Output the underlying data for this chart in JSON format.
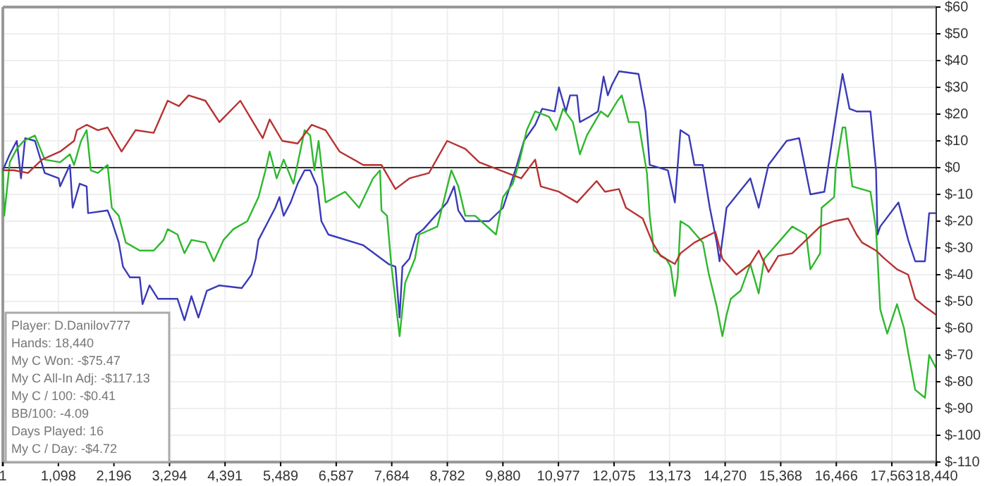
{
  "chart_data": {
    "type": "line",
    "grid": true,
    "marker": "none",
    "line_style": "solid",
    "xlim": [
      1,
      18440
    ],
    "ylim": [
      -110,
      60
    ],
    "xticks": [
      1,
      {
        "value": 1098,
        "label": "1,098"
      },
      {
        "value": 2196,
        "label": "2,196"
      },
      {
        "value": 3294,
        "label": "3,294"
      },
      {
        "value": 4391,
        "label": "4,391"
      },
      {
        "value": 5489,
        "label": "5,489"
      },
      {
        "value": 6587,
        "label": "6,587"
      },
      {
        "value": 7684,
        "label": "7,684"
      },
      {
        "value": 8782,
        "label": "8,782"
      },
      {
        "value": 9880,
        "label": "9,880"
      },
      {
        "value": 10977,
        "label": "10,977"
      },
      {
        "value": 12075,
        "label": "12,075"
      },
      {
        "value": 13173,
        "label": "13,173"
      },
      {
        "value": 14270,
        "label": "14,270"
      },
      {
        "value": 15368,
        "label": "15,368"
      },
      {
        "value": 16466,
        "label": "16,466"
      },
      {
        "value": 17563,
        "label": "17,563"
      },
      {
        "value": 18440,
        "label": "18,440"
      }
    ],
    "yticks": [
      {
        "value": 60,
        "label": "$60"
      },
      {
        "value": 50,
        "label": "$50"
      },
      {
        "value": 40,
        "label": "$40"
      },
      {
        "value": 30,
        "label": "$30"
      },
      {
        "value": 20,
        "label": "$20"
      },
      {
        "value": 10,
        "label": "$10"
      },
      {
        "value": 0,
        "label": "$0"
      },
      {
        "value": -10,
        "label": "$-10"
      },
      {
        "value": -20,
        "label": "$-20"
      },
      {
        "value": -30,
        "label": "$-30"
      },
      {
        "value": -40,
        "label": "$-40"
      },
      {
        "value": -50,
        "label": "$-50"
      },
      {
        "value": -60,
        "label": "$-60"
      },
      {
        "value": -70,
        "label": "$-70"
      },
      {
        "value": -80,
        "label": "$-80"
      },
      {
        "value": -90,
        "label": "$-90"
      },
      {
        "value": -100,
        "label": "$-100"
      },
      {
        "value": -110,
        "label": "$-110"
      }
    ],
    "ref_lines": [
      {
        "axis": "y",
        "value": 0,
        "color": "#333333"
      }
    ],
    "annotations": [
      "Player: D.Danilov777",
      "Hands: 18,440",
      "My C Won: -$75.47",
      "My C All-In Adj: -$117.13",
      "My C / 100: -$0.41",
      "BB/100: -4.09",
      "Days Played: 16",
      "My C / Day: -$4.72"
    ],
    "series": [
      {
        "color": "#3a3ab8",
        "x": [
          1,
          139,
          277,
          360,
          443,
          636,
          829,
          1105,
          1133,
          1326,
          1381,
          1519,
          1657,
          1685,
          2071,
          2154,
          2292,
          2375,
          2513,
          2706,
          2761,
          2899,
          3065,
          3451,
          3589,
          3727,
          3865,
          4031,
          4279,
          4721,
          4914,
          4997,
          5052,
          5383,
          5466,
          5549,
          5687,
          5825,
          5963,
          6073,
          6211,
          6294,
          6432,
          7122,
          7619,
          7757,
          7839,
          7895,
          8033,
          8171,
          8309,
          8778,
          8916,
          8999,
          9137,
          9606,
          9882,
          10158,
          10296,
          10517,
          10655,
          10903,
          10986,
          11124,
          11207,
          11345,
          11400,
          11593,
          11759,
          11869,
          11952,
          12035,
          12173,
          12559,
          12697,
          12780,
          13139,
          13277,
          13387,
          13553,
          13663,
          13829,
          13967,
          14105,
          14160,
          14298,
          14767,
          14933,
          15126,
          15485,
          15733,
          15954,
          16230,
          16423,
          16589,
          16727,
          16865,
          17141,
          17251,
          17279,
          17334,
          17693,
          17886,
          18024,
          18217,
          18300,
          18440
        ],
        "values": [
          -1,
          5,
          10,
          -4,
          11,
          10,
          -2,
          -4,
          -7,
          1,
          -15,
          -6,
          -7,
          -17,
          -16,
          -20,
          -28,
          -37,
          -41,
          -41,
          -51,
          -44,
          -49,
          -49,
          -57,
          -48,
          -56,
          -46,
          -44,
          -45,
          -40,
          -34,
          -27,
          -15,
          -11,
          -18,
          -13,
          -6,
          -1,
          -1,
          -7,
          -20,
          -25,
          -29,
          -36,
          -37,
          -56,
          -37,
          -34,
          -25,
          -23,
          -13,
          -7,
          -16,
          -20,
          -20,
          -15,
          1,
          10,
          16,
          22,
          21,
          30,
          21,
          27,
          27,
          17,
          19,
          21,
          34,
          27,
          31,
          36,
          35,
          21,
          1,
          -1,
          -13,
          14,
          12,
          1,
          1,
          -15,
          -28,
          -35,
          -15,
          -4,
          -15,
          1,
          10,
          11,
          -10,
          -9,
          15,
          35,
          22,
          21,
          21,
          -1,
          -25,
          -22,
          -13,
          -27,
          -35,
          -35,
          -17,
          -17
        ]
      },
      {
        "color": "#2eb82e",
        "x": [
          1,
          29,
          139,
          277,
          415,
          636,
          829,
          1133,
          1326,
          1409,
          1547,
          1657,
          1740,
          1878,
          2071,
          2154,
          2292,
          2430,
          2706,
          2982,
          3175,
          3258,
          3451,
          3589,
          3727,
          4003,
          4169,
          4362,
          4555,
          4831,
          5052,
          5190,
          5273,
          5411,
          5549,
          5742,
          5963,
          6073,
          6156,
          6239,
          6377,
          6763,
          7039,
          7315,
          7453,
          7481,
          7591,
          7674,
          7839,
          7950,
          8143,
          8226,
          8585,
          8861,
          8999,
          9137,
          9330,
          9744,
          9882,
          10075,
          10213,
          10351,
          10517,
          10793,
          10931,
          11069,
          11262,
          11400,
          11538,
          11814,
          11952,
          12145,
          12228,
          12366,
          12559,
          12725,
          12780,
          12863,
          13101,
          13194,
          13277,
          13332,
          13387,
          13553,
          13691,
          13829,
          13939,
          14105,
          14215,
          14298,
          14381,
          14574,
          14767,
          14933,
          15043,
          15319,
          15595,
          15871,
          15954,
          16147,
          16175,
          16423,
          16451,
          16589,
          16644,
          16782,
          17141,
          17251,
          17334,
          17472,
          17665,
          17803,
          17886,
          18024,
          18217,
          18300,
          18440
        ],
        "values": [
          -1,
          -18,
          2,
          7,
          10,
          12,
          3,
          2,
          5,
          1,
          10,
          14,
          -1,
          -2,
          1,
          -15,
          -18,
          -28,
          -31,
          -31,
          -27,
          -23,
          -25,
          -32,
          -27,
          -28,
          -35,
          -27,
          -23,
          -20,
          -11,
          -1,
          6,
          -4,
          3,
          -6,
          14,
          12,
          -1,
          10,
          -13,
          -9,
          -15,
          -4,
          -1,
          -16,
          -18,
          -36,
          -63,
          -43,
          -34,
          -25,
          -22,
          -1,
          -7,
          -18,
          -18,
          -25,
          -11,
          -6,
          3,
          14,
          21,
          19,
          14,
          22,
          17,
          5,
          12,
          21,
          19,
          25,
          27,
          17,
          17,
          -2,
          -18,
          -31,
          -34,
          -37,
          -48,
          -41,
          -20,
          -22,
          -25,
          -28,
          -39,
          -52,
          -63,
          -55,
          -49,
          -46,
          -36,
          -47,
          -34,
          -28,
          -22,
          -25,
          -38,
          -32,
          -15,
          -11,
          -1,
          15,
          15,
          -7,
          -9,
          -23,
          -53,
          -62,
          -51,
          -60,
          -69,
          -83,
          -86,
          -70,
          -75
        ]
      },
      {
        "color": "#b83232",
        "x": [
          1,
          222,
          498,
          774,
          1133,
          1409,
          1464,
          1657,
          1878,
          2071,
          2347,
          2623,
          2982,
          3258,
          3479,
          3672,
          4003,
          4279,
          4693,
          4914,
          5135,
          5273,
          5521,
          5825,
          6101,
          6377,
          6653,
          7122,
          7481,
          7757,
          8033,
          8419,
          8778,
          9137,
          9413,
          9965,
          10241,
          10517,
          10627,
          10986,
          11345,
          11731,
          11897,
          12173,
          12311,
          12642,
          12835,
          12997,
          13277,
          13387,
          13663,
          14077,
          14215,
          14491,
          14767,
          14933,
          15126,
          15319,
          15595,
          15871,
          16147,
          16423,
          16699,
          16865,
          16975,
          17251,
          17417,
          17665,
          17886,
          18024,
          18217,
          18440
        ],
        "values": [
          -1,
          -1,
          -2,
          3,
          6,
          10,
          14,
          16,
          14,
          15,
          6,
          14,
          13,
          25,
          23,
          27,
          25,
          17,
          25,
          18,
          11,
          18,
          10,
          9,
          16,
          14,
          6,
          1,
          1,
          -8,
          -4,
          -2,
          10,
          7,
          2,
          -2,
          -4,
          3,
          -7,
          -9,
          -13,
          -5,
          -9,
          -8,
          -15,
          -19,
          -28,
          -33,
          -36,
          -32,
          -28,
          -24,
          -34,
          -40,
          -36,
          -31,
          -39,
          -33,
          -32,
          -27,
          -22,
          -20,
          -19,
          -25,
          -28,
          -31,
          -34,
          -38,
          -40,
          -49,
          -52,
          -55
        ]
      }
    ]
  }
}
